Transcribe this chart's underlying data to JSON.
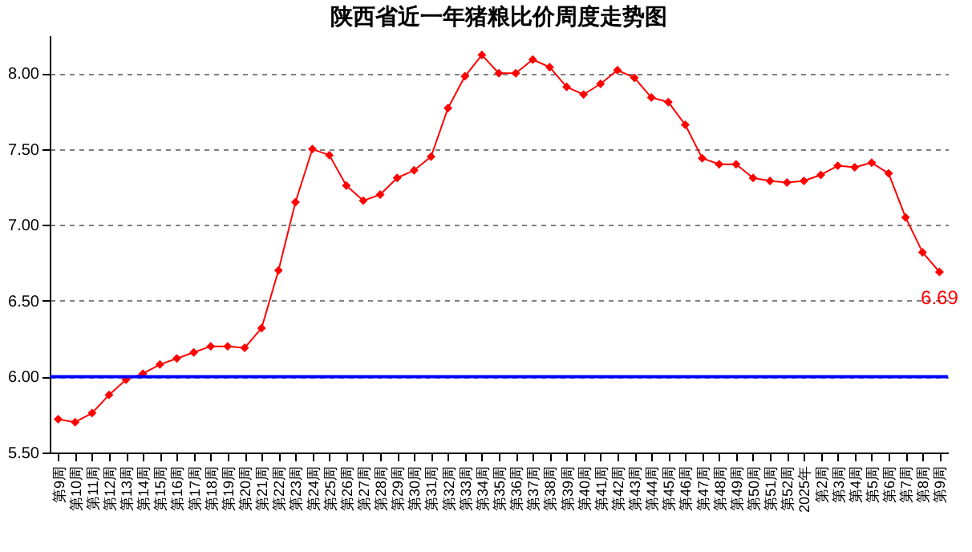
{
  "chart_data": {
    "type": "line",
    "title": "陕西省近一年猪粮比价周度走势图",
    "categories": [
      "第9周",
      "第10周",
      "第11周",
      "第12周",
      "第13周",
      "第14周",
      "第15周",
      "第16周",
      "第17周",
      "第18周",
      "第19周",
      "第20周",
      "第21周",
      "第22周",
      "第23周",
      "第24周",
      "第25周",
      "第26周",
      "第27周",
      "第28周",
      "第29周",
      "第30周",
      "第31周",
      "第32周",
      "第33周",
      "第34周",
      "第35周",
      "第36周",
      "第37周",
      "第38周",
      "第39周",
      "第40周",
      "第41周",
      "第42周",
      "第43周",
      "第44周",
      "第45周",
      "第46周",
      "第47周",
      "第48周",
      "第49周",
      "第50周",
      "第51周",
      "第52周",
      "2025年",
      "第2周",
      "第3周",
      "第4周",
      "第5周",
      "第6周",
      "第7周",
      "第8周",
      "第9周"
    ],
    "series": [
      {
        "color": "#ff0000",
        "values": [
          5.72,
          5.7,
          5.76,
          5.88,
          5.98,
          6.02,
          6.08,
          6.12,
          6.16,
          6.2,
          6.2,
          6.19,
          6.32,
          6.7,
          7.15,
          7.5,
          7.46,
          7.26,
          7.16,
          7.2,
          7.31,
          7.36,
          7.45,
          7.77,
          7.98,
          8.12,
          8.0,
          8.0,
          8.09,
          8.04,
          7.91,
          7.86,
          7.93,
          8.02,
          7.97,
          7.84,
          7.81,
          7.66,
          7.44,
          7.4,
          7.4,
          7.31,
          7.29,
          7.28,
          7.29,
          7.33,
          7.39,
          7.38,
          7.41,
          7.34,
          7.05,
          6.82,
          6.69
        ],
        "value_labels": [
          null,
          null,
          null,
          null,
          null,
          null,
          null,
          null,
          null,
          null,
          null,
          null,
          null,
          null,
          null,
          null,
          null,
          null,
          null,
          null,
          null,
          null,
          null,
          null,
          null,
          null,
          null,
          null,
          null,
          null,
          null,
          null,
          null,
          null,
          null,
          null,
          null,
          null,
          null,
          null,
          null,
          null,
          null,
          null,
          null,
          null,
          null,
          null,
          null,
          null,
          null,
          null,
          "6.69"
        ]
      }
    ],
    "ylim": [
      5.5,
      8.25
    ],
    "yticks": [
      {
        "value": 5.5,
        "label": "5.50"
      },
      {
        "value": 6,
        "label": "6.00"
      },
      {
        "value": 6.5,
        "label": "6.50"
      },
      {
        "value": 7,
        "label": "7.00"
      },
      {
        "value": 7.5,
        "label": "7.50"
      },
      {
        "value": 8,
        "label": "8.00"
      }
    ],
    "ref_lines": [
      {
        "axis": "y",
        "value": 6,
        "color": "#0000ff"
      }
    ],
    "grid": "y",
    "marker": "diamond"
  }
}
